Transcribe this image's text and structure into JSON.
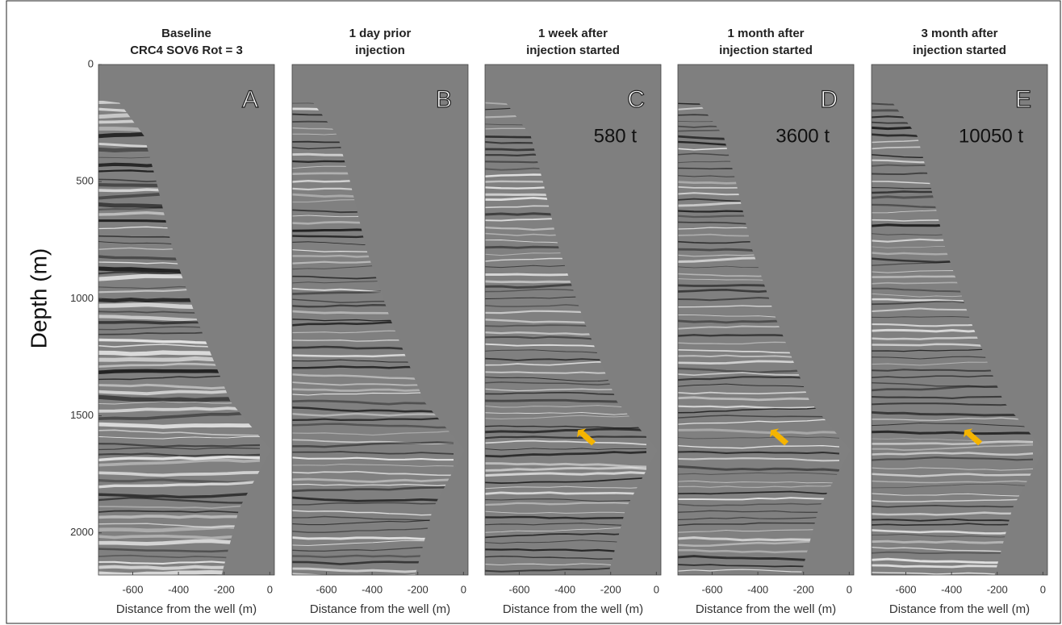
{
  "chart_data": [
    {
      "type": "seismic",
      "title": [
        "Baseline",
        "CRC4 SOV6 Rot = 3"
      ],
      "panel_label": "A",
      "xlabel": "Distance from the well (m)",
      "ylabel": "Depth (m)",
      "xlim": [
        -750,
        20
      ],
      "xticks": [
        -600,
        -400,
        -200,
        0
      ],
      "ylim": [
        0,
        2180
      ],
      "yticks": [
        0,
        500,
        1000,
        1500,
        2000
      ]
    },
    {
      "type": "seismic",
      "title": [
        "1 day prior",
        "injection"
      ],
      "panel_label": "B",
      "xlabel": "Distance from the well (m)",
      "xlim": [
        -750,
        20
      ],
      "xticks": [
        -600,
        -400,
        -200,
        0
      ],
      "ylim": [
        0,
        2180
      ]
    },
    {
      "type": "seismic",
      "title": [
        "1 week after",
        "injection started"
      ],
      "panel_label": "C",
      "annotation": "580 t",
      "xlabel": "Distance from the well (m)",
      "xlim": [
        -750,
        20
      ],
      "xticks": [
        -600,
        -400,
        -200,
        0
      ],
      "ylim": [
        0,
        2180
      ]
    },
    {
      "type": "seismic",
      "title": [
        "1 month after",
        "injection started"
      ],
      "panel_label": "D",
      "annotation": "3600 t",
      "xlabel": "Distance from the well (m)",
      "xlim": [
        -750,
        20
      ],
      "xticks": [
        -600,
        -400,
        -200,
        0
      ],
      "ylim": [
        0,
        2180
      ]
    },
    {
      "type": "seismic",
      "title": [
        "3 month after",
        "injection started"
      ],
      "panel_label": "E",
      "annotation": "10050 t",
      "xlabel": "Distance from the well (m)",
      "xlim": [
        -750,
        20
      ],
      "xticks": [
        -600,
        -400,
        -200,
        0
      ],
      "ylim": [
        0,
        2180
      ]
    }
  ]
}
